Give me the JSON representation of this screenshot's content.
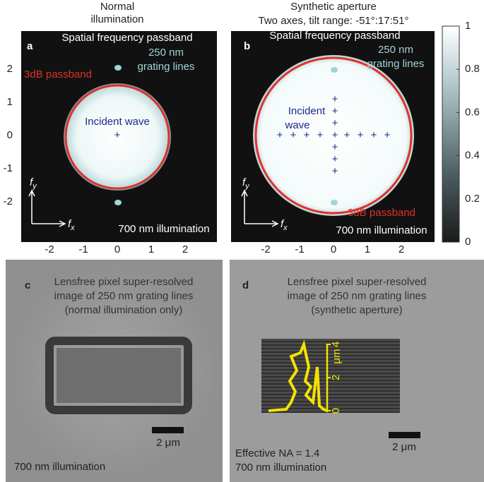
{
  "axes": {
    "xticks": [
      -2,
      -1,
      0,
      1,
      2
    ],
    "yticks": [
      -2,
      -1,
      0,
      1,
      2
    ]
  },
  "colorbar": {
    "ticks": [
      0,
      0.2,
      0.4,
      0.6,
      0.8,
      1
    ]
  },
  "panel_a": {
    "heading": [
      "Normal",
      "illumination"
    ],
    "label": "a",
    "subtitle": "Spatial frequency passband",
    "grating": [
      "250 nm",
      "grating lines"
    ],
    "passband": "3dB passband",
    "incident": [
      "Incident wave"
    ],
    "fy": [
      "f",
      "y"
    ],
    "fx": [
      "f",
      "x"
    ],
    "illumination": "700 nm illumination"
  },
  "panel_b": {
    "heading": [
      "Synthetic aperture",
      "Two axes, tilt range: -51°:17:51°"
    ],
    "label": "b",
    "subtitle": "Spatial frequency passband",
    "grating": [
      "250 nm",
      "grating lines"
    ],
    "passband": "3dB passband",
    "incident": [
      "Incident",
      "wave"
    ],
    "fy": [
      "f",
      "y"
    ],
    "fx": [
      "f",
      "x"
    ],
    "illumination": "700 nm illumination"
  },
  "panel_c": {
    "label": "c",
    "caption": [
      "Lensfree pixel super-resolved",
      "image of 250 nm grating lines",
      "(normal illumination only)"
    ],
    "scale_bar": "2 μm",
    "illumination": "700 nm illumination"
  },
  "panel_d": {
    "label": "d",
    "caption": [
      "Lensfree pixel super-resolved",
      "image of 250 nm grating lines",
      "(synthetic aperture)"
    ],
    "scale_bar": "2 μm",
    "na": "Effective NA = 1.4",
    "illumination": "700 nm illumination",
    "profile_ticks": [
      0,
      2,
      4
    ],
    "profile_unit": "μm"
  }
}
